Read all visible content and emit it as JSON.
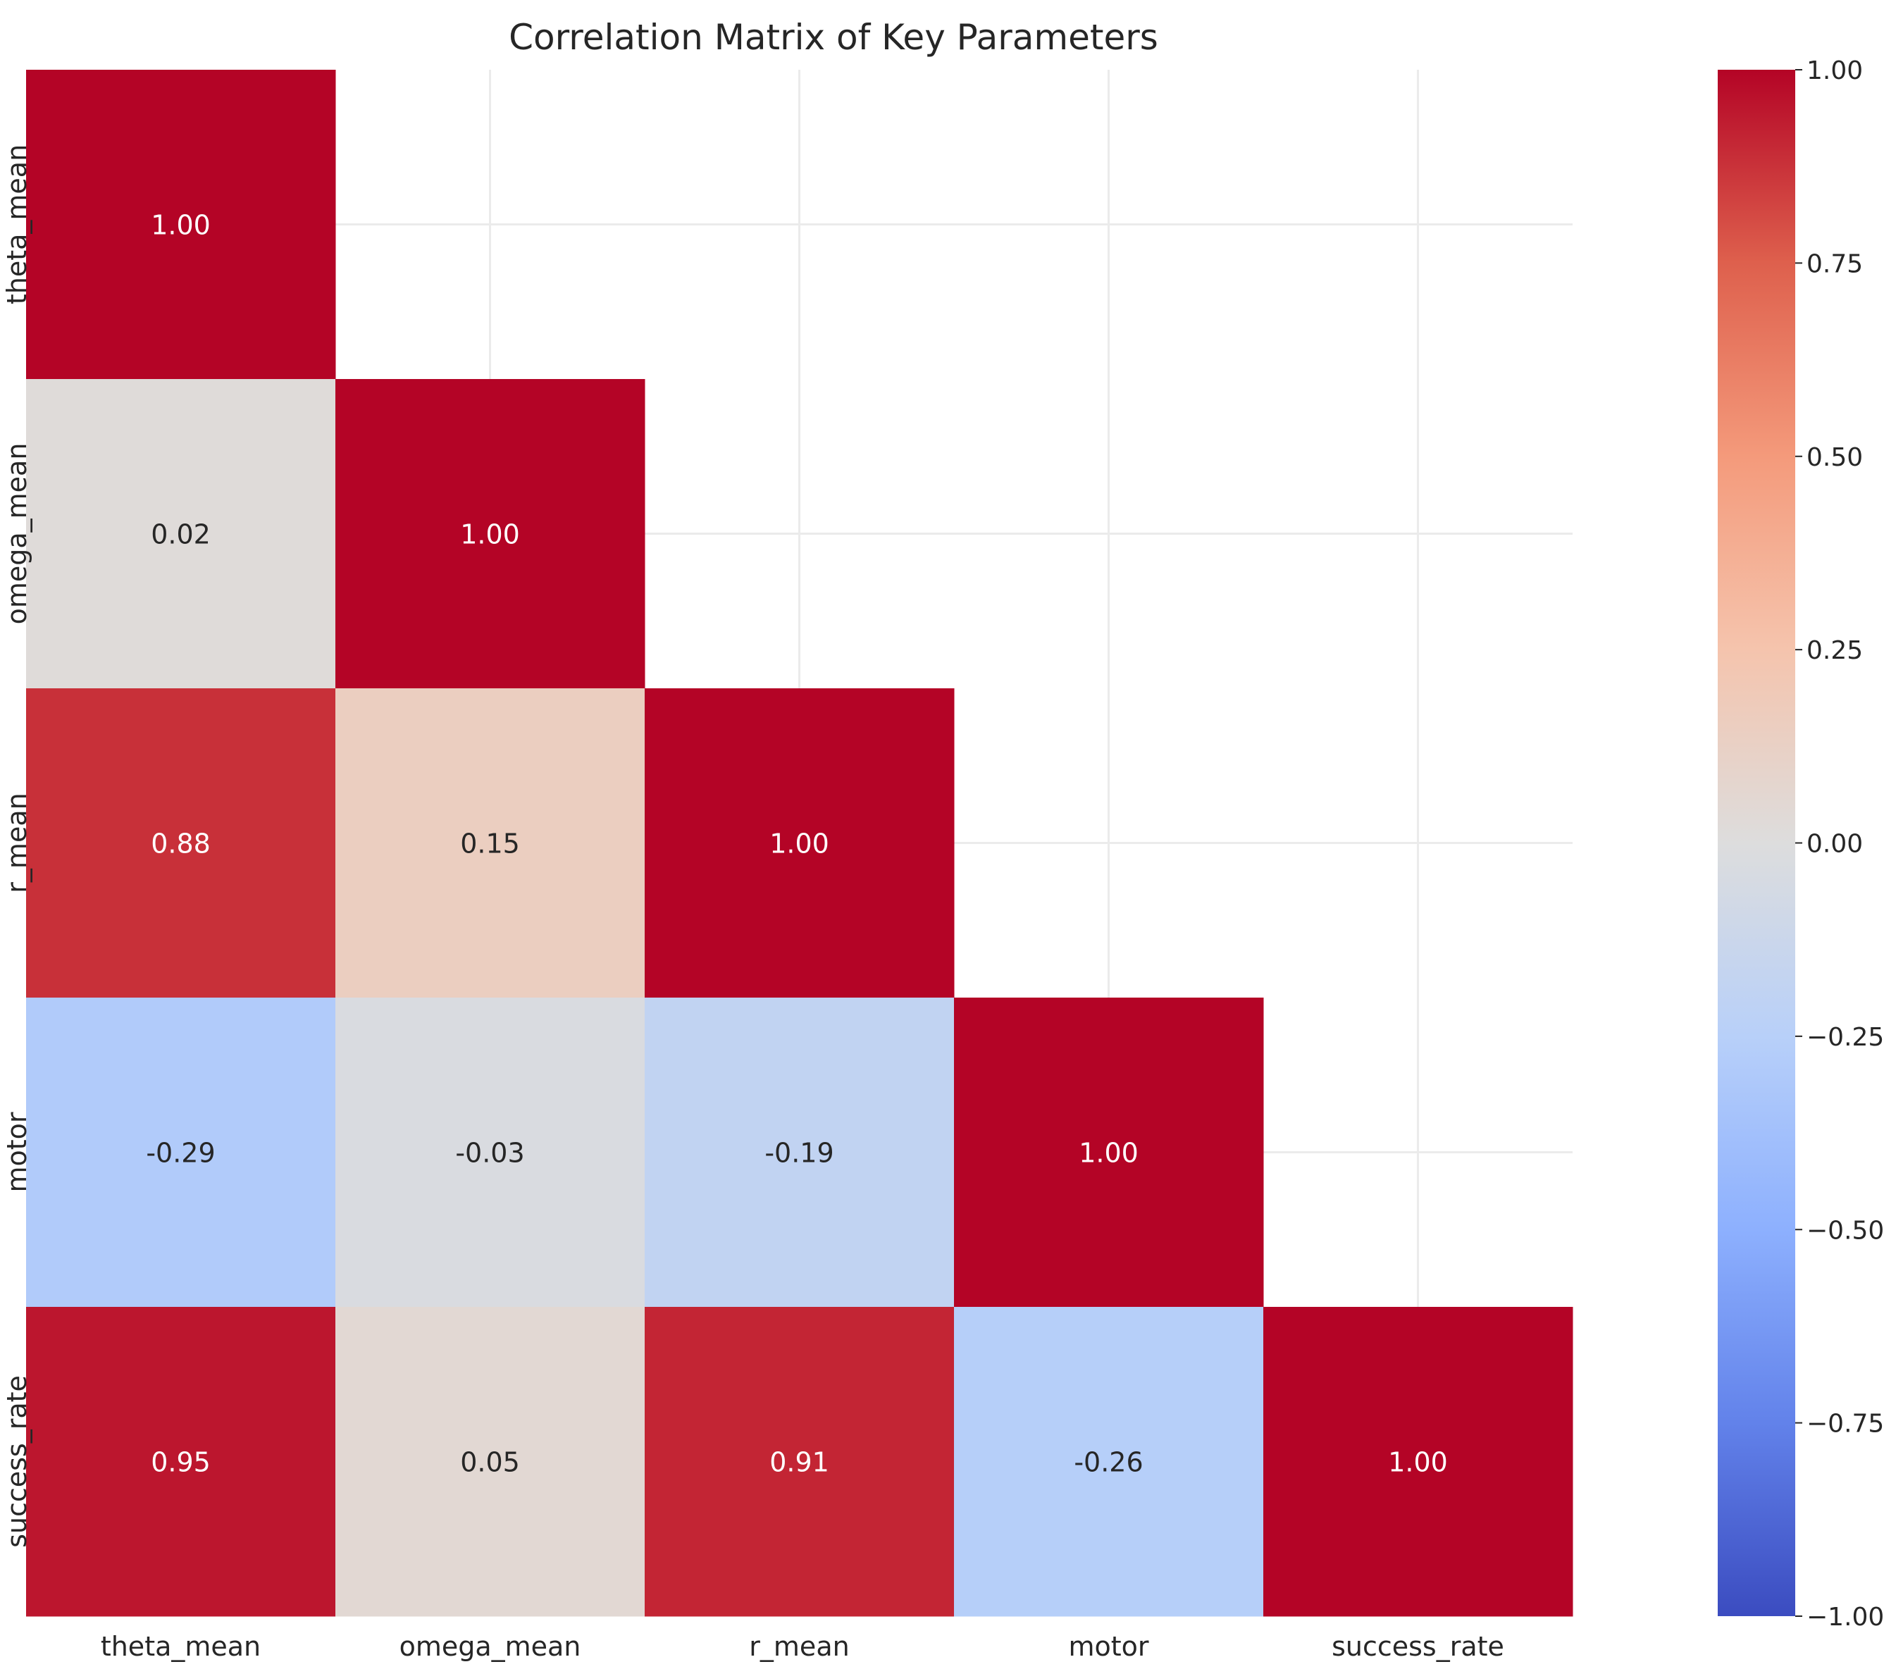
{
  "chart_data": {
    "type": "heatmap",
    "title": "Correlation Matrix of Key Parameters",
    "xlabel": "",
    "ylabel": "",
    "variables": [
      "theta_mean",
      "omega_mean",
      "r_mean",
      "motor",
      "success_rate"
    ],
    "mask": "upper-triangle hidden (lower triangle and diagonal shown)",
    "matrix": [
      [
        1.0,
        null,
        null,
        null,
        null
      ],
      [
        0.02,
        1.0,
        null,
        null,
        null
      ],
      [
        0.88,
        0.15,
        1.0,
        null,
        null
      ],
      [
        -0.29,
        -0.03,
        -0.19,
        1.0,
        null
      ],
      [
        0.95,
        0.05,
        0.91,
        -0.26,
        1.0
      ]
    ],
    "annotation_format": "2 decimals",
    "colormap": "coolwarm",
    "vmin": -1.0,
    "vmax": 1.0,
    "colorbar_ticks": [
      "−1.00",
      "−0.75",
      "−0.50",
      "−0.25",
      "0.00",
      "0.25",
      "0.50",
      "0.75",
      "1.00"
    ],
    "grid": true,
    "colors": {
      "low": "#3b4cc0",
      "mid": "#dddddd",
      "high": "#b40426",
      "grid": "#ebebeb",
      "text": "#262626"
    }
  }
}
